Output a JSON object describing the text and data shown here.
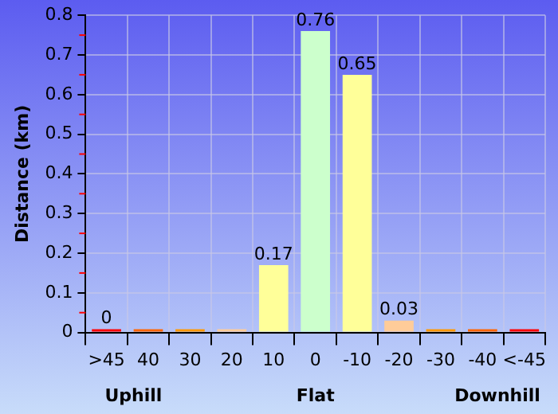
{
  "chart_data": {
    "type": "bar",
    "ylabel": "Distance (km)",
    "categories": [
      ">45",
      "40",
      "30",
      "20",
      "10",
      "0",
      "-10",
      "-20",
      "-30",
      "-40",
      "<-45"
    ],
    "values": [
      0,
      0,
      0,
      0,
      0.17,
      0.76,
      0.65,
      0.03,
      0,
      0,
      0
    ],
    "value_labels": [
      "0",
      null,
      null,
      null,
      "0.17",
      "0.76",
      "0.65",
      "0.03",
      null,
      null,
      null
    ],
    "colors": [
      "#ff0000",
      "#ff6600",
      "#ff9900",
      "#ffcc99",
      "#ffff99",
      "#ccffcc",
      "#ffff99",
      "#ffcc99",
      "#ff9900",
      "#ff6600",
      "#ff0000"
    ],
    "ylim": [
      0,
      0.8
    ],
    "yticks": [
      0,
      0.1,
      0.2,
      0.3,
      0.4,
      0.5,
      0.6,
      0.7,
      0.8
    ],
    "grid": true,
    "annotations": [
      "Uphill",
      "Flat",
      "Downhill"
    ]
  }
}
